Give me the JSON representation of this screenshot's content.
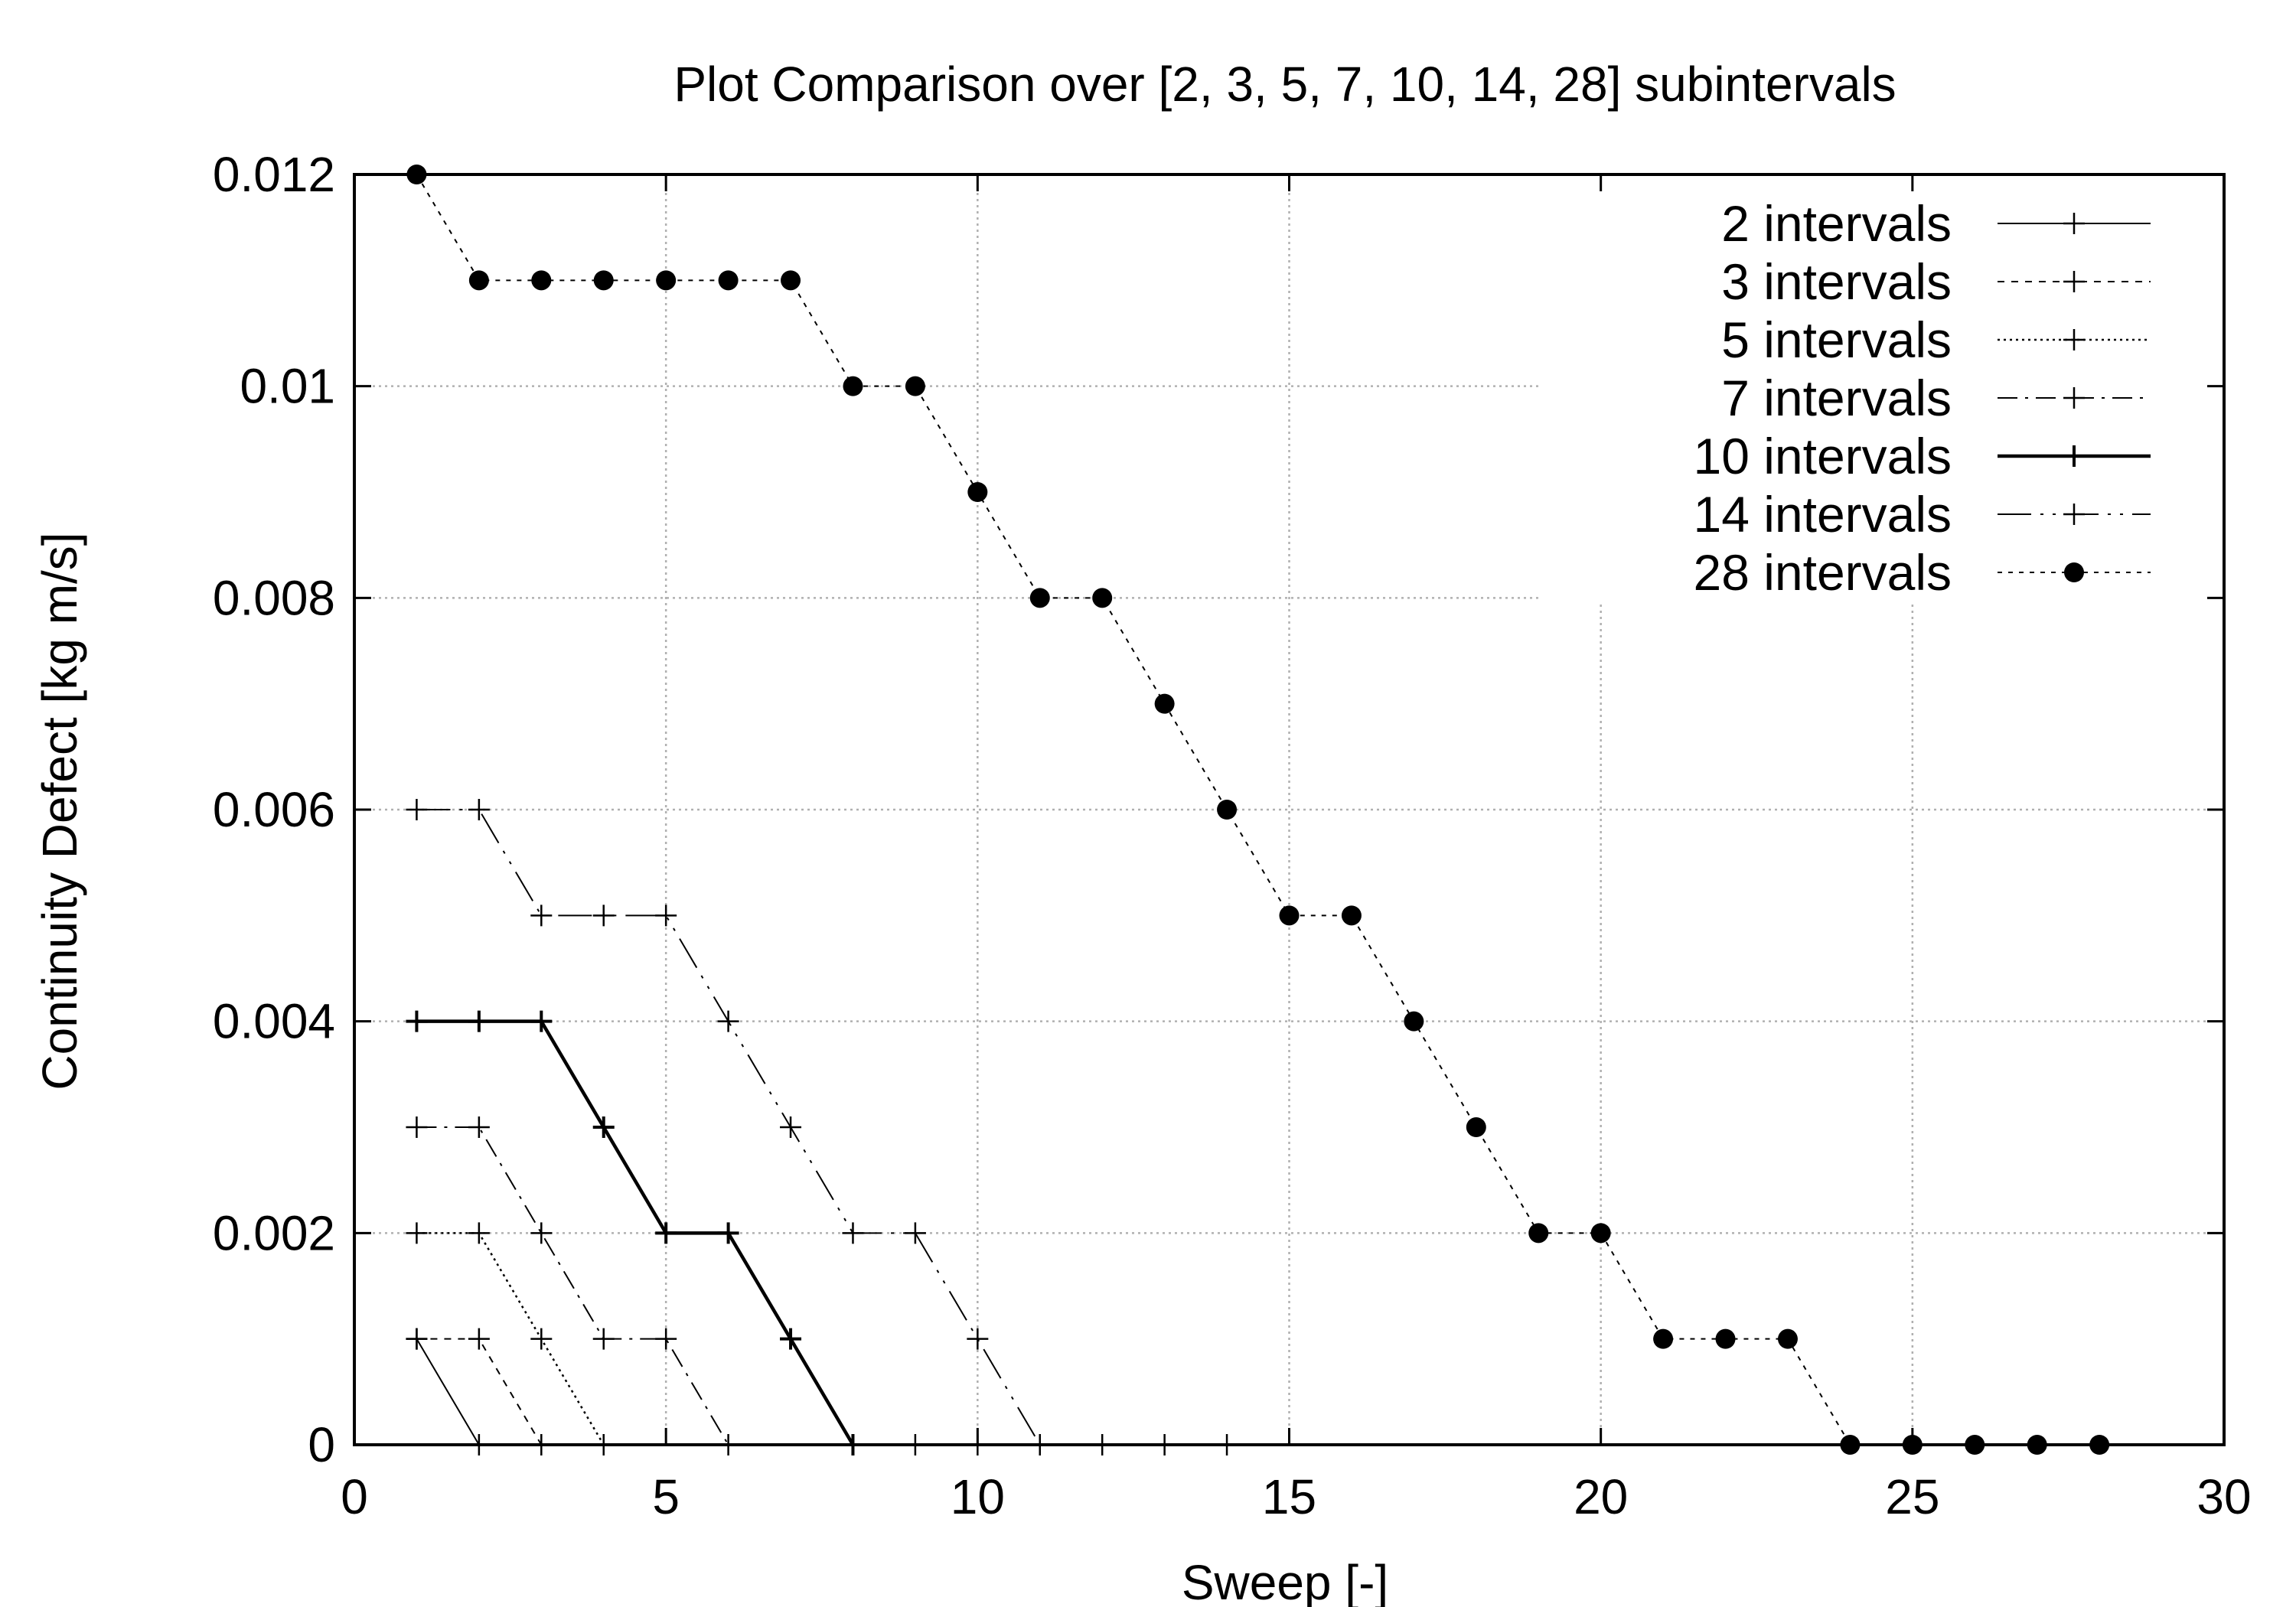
{
  "chart_data": {
    "type": "line",
    "title": "Plot Comparison over [2, 3, 5, 7, 10, 14, 28] subintervals",
    "xlabel": "Sweep [-]",
    "ylabel": "Continuity Defect [kg m/s]",
    "xlim": [
      0,
      30
    ],
    "ylim": [
      0,
      0.012
    ],
    "x_ticks": [
      0,
      5,
      10,
      15,
      20,
      25,
      30
    ],
    "y_ticks": [
      0,
      0.002,
      0.004,
      0.006,
      0.008,
      0.01,
      0.012
    ],
    "x_tick_labels": [
      "0",
      "5",
      "10",
      "15",
      "20",
      "25",
      "30"
    ],
    "y_tick_labels": [
      "0",
      "0.002",
      "0.004",
      "0.006",
      "0.008",
      "0.01",
      "0.012"
    ],
    "grid": true,
    "legend_position": "top-right",
    "series": [
      {
        "name": "2 intervals",
        "line_style": "solid-thin",
        "marker": "plus",
        "x": [
          1,
          2
        ],
        "y": [
          0.001,
          0
        ]
      },
      {
        "name": "3 intervals",
        "line_style": "dashed",
        "marker": "plus",
        "x": [
          1,
          2,
          3
        ],
        "y": [
          0.001,
          0.001,
          0
        ]
      },
      {
        "name": "5 intervals",
        "line_style": "dotted",
        "marker": "plus",
        "x": [
          1,
          2,
          3,
          4
        ],
        "y": [
          0.002,
          0.002,
          0.001,
          0
        ]
      },
      {
        "name": "7 intervals",
        "line_style": "dash-dot",
        "marker": "plus",
        "x": [
          1,
          2,
          3,
          4,
          5,
          6
        ],
        "y": [
          0.003,
          0.003,
          0.002,
          0.001,
          0.001,
          0
        ]
      },
      {
        "name": "10 intervals",
        "line_style": "solid-thick",
        "marker": "plus",
        "x": [
          1,
          2,
          3,
          4,
          5,
          6,
          7,
          8
        ],
        "y": [
          0.004,
          0.004,
          0.004,
          0.003,
          0.002,
          0.002,
          0.001,
          0
        ]
      },
      {
        "name": "14 intervals",
        "line_style": "long-dash-dot",
        "marker": "plus",
        "x": [
          1,
          2,
          3,
          4,
          5,
          6,
          7,
          8,
          9,
          10,
          11
        ],
        "y": [
          0.006,
          0.006,
          0.005,
          0.005,
          0.005,
          0.004,
          0.003,
          0.002,
          0.002,
          0.001,
          0
        ]
      },
      {
        "name": "28 intervals",
        "line_style": "fine-dashed",
        "marker": "dot",
        "x": [
          1,
          2,
          3,
          4,
          5,
          6,
          7,
          8,
          9,
          10,
          11,
          12,
          13,
          14,
          15,
          16,
          17,
          18,
          19,
          20,
          21,
          22,
          23,
          24,
          25,
          26,
          27,
          28
        ],
        "y": [
          0.012,
          0.011,
          0.011,
          0.011,
          0.011,
          0.011,
          0.011,
          0.01,
          0.01,
          0.009,
          0.008,
          0.008,
          0.007,
          0.006,
          0.005,
          0.005,
          0.004,
          0.003,
          0.002,
          0.002,
          0.001,
          0.001,
          0.001,
          0,
          0,
          0,
          0,
          0
        ]
      }
    ],
    "extra_markers": [
      {
        "series": "10 intervals",
        "x": [
          9,
          10,
          11,
          12,
          13,
          14
        ],
        "y": [
          0,
          0,
          0,
          0,
          0,
          0
        ]
      }
    ]
  }
}
